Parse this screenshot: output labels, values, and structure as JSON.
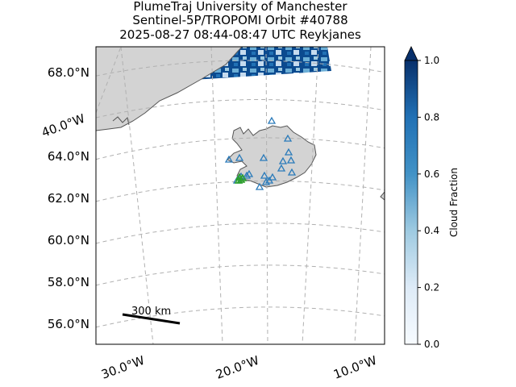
{
  "title": {
    "line1": "PlumeTraj    University of Manchester",
    "line2": "Sentinel-5P/TROPOMI Orbit #40788",
    "line3": "2025-08-27   08:44-08:47 UTC   Reykjanes"
  },
  "lat_labels": [
    "68.0°N",
    "64.0°N",
    "62.0°N",
    "60.0°N",
    "58.0°N",
    "56.0°N"
  ],
  "lon_labels": [
    "30.0°W",
    "20.0°W",
    "10.0°W"
  ],
  "side_lon_label": "40.0°W",
  "scale_bar": {
    "label": "300 km"
  },
  "colorbar": {
    "label": "Cloud Fraction",
    "ticks": [
      "0.0",
      "0.2",
      "0.4",
      "0.6",
      "0.8",
      "1.0"
    ],
    "colors": {
      "low": "#f7fbff",
      "mid": "#6baed6",
      "high": "#08306b"
    }
  },
  "markers": {
    "volcano_color": "#2b7bba",
    "vent_color": "#2ca02c"
  }
}
